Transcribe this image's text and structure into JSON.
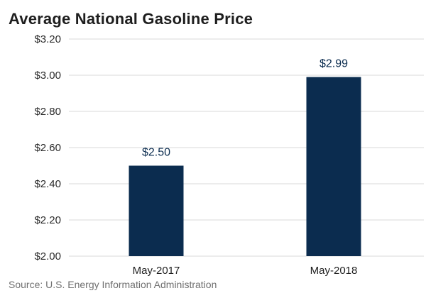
{
  "chart_data": {
    "type": "bar",
    "title": "Average National Gasoline Price",
    "categories": [
      "May-2017",
      "May-2018"
    ],
    "values": [
      2.5,
      2.99
    ],
    "data_labels": [
      "$2.50",
      "$2.99"
    ],
    "xlabel": "",
    "ylabel": "",
    "ylim": [
      2.0,
      3.2
    ],
    "yticks": [
      2.0,
      2.2,
      2.4,
      2.6,
      2.8,
      3.0,
      3.2
    ],
    "ytick_labels": [
      "$2.00",
      "$2.20",
      "$2.40",
      "$2.60",
      "$2.80",
      "$3.00",
      "$3.20"
    ],
    "grid": true,
    "legend": "none",
    "bar_color": "#0b2c4f",
    "label_color": "#0b2c4f",
    "grid_color": "#d9d9d9"
  },
  "source": "Source: U.S. Energy Information Administration"
}
